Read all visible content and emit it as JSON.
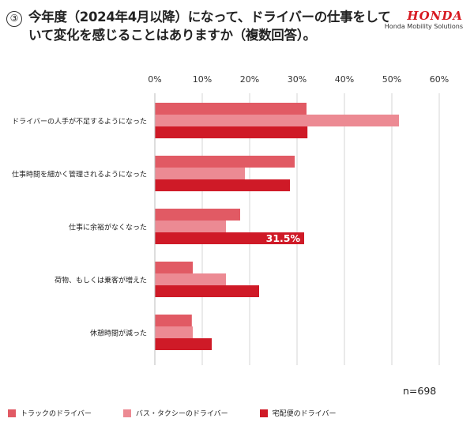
{
  "header": {
    "number": "③",
    "title": "今年度（2024年4月以降）になって、ドライバーの仕事をしていて変化を感じることはありますか（複数回答）。",
    "brand": "HONDA",
    "brand_sub": "Honda Mobility Solutions"
  },
  "chart_data": {
    "type": "bar",
    "orientation": "horizontal",
    "x_ticks": [
      "0%",
      "10%",
      "20%",
      "30%",
      "40%",
      "50%",
      "60%"
    ],
    "xlim": [
      0,
      60
    ],
    "grid": true,
    "categories": [
      "ドライバーの人手が不足するようになった",
      "仕事時間を細かく管理されるようになった",
      "仕事に余裕がなくなった",
      "荷物、もしくは乗客が増えた",
      "休憩時間が減った"
    ],
    "series": [
      {
        "name": "トラックのドライバー",
        "color": "#e15a64",
        "values": [
          32,
          29.5,
          18,
          8,
          7.8
        ]
      },
      {
        "name": "バス・タクシーのドライバー",
        "color": "#ec8a93",
        "values": [
          51.5,
          19,
          15,
          15,
          8
        ]
      },
      {
        "name": "宅配便のドライバー",
        "color": "#cf1a27",
        "values": [
          32.2,
          28.5,
          31.5,
          22,
          12
        ]
      }
    ],
    "annotation": {
      "category_index": 2,
      "series_index": 2,
      "text": "31.5%"
    },
    "legend_position": "bottom"
  },
  "sample_size": "n=698"
}
